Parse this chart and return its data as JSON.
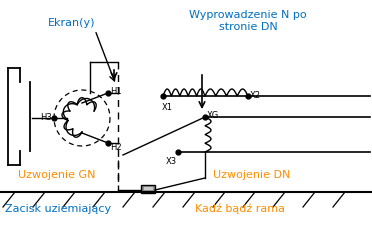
{
  "bg_color": "#ffffff",
  "text_color_blue": "#0070C0",
  "text_color_orange": "#FF8C00",
  "text_color_black": "#000000",
  "labels": {
    "ekran": "Ekran(y)",
    "wyprowadzenie": "Wyprowadzenie N po\nstronie DN",
    "uzwojenie_gn": "Uzwojenie GN",
    "uzwojenie_dn": "Uzwojenie DN",
    "zacisk": "Zacisk uziemiający",
    "kadz": "Kadź bądź rama",
    "H1": "H1",
    "H2": "H2",
    "H3": "H3",
    "X1": "X1",
    "X2": "X2",
    "X3": "X3",
    "XG": "XG"
  },
  "figsize": [
    3.72,
    2.27
  ],
  "dpi": 100
}
